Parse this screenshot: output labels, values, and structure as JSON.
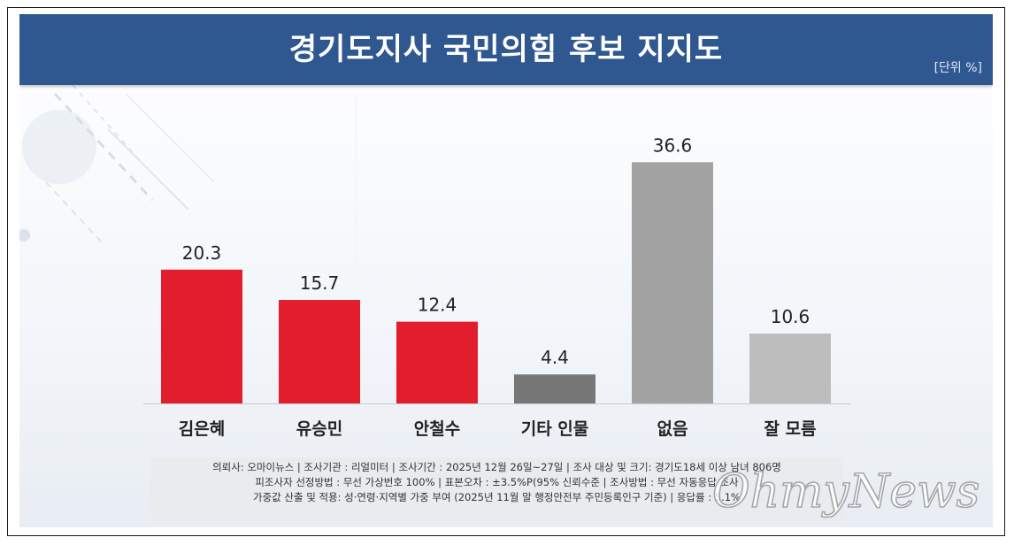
{
  "header": {
    "title": "경기도지사 국민의힘 후보 지지도",
    "unit": "[단위 %]"
  },
  "colors": {
    "header_bg": "#2f5891",
    "red": "#e31e2c",
    "dark_gray": "#777777",
    "mid_gray": "#a3a3a3",
    "light_gray": "#bdbdbd"
  },
  "chart_data": {
    "type": "bar",
    "categories": [
      "김은혜",
      "유승민",
      "안철수",
      "기타 인물",
      "없음",
      "잘 모름"
    ],
    "values": [
      20.3,
      15.7,
      12.4,
      4.4,
      36.6,
      10.6
    ],
    "value_labels": [
      "20.3",
      "15.7",
      "12.4",
      "4.4",
      "36.6",
      "10.6"
    ],
    "bar_colors": [
      "#e31e2c",
      "#e31e2c",
      "#e31e2c",
      "#777777",
      "#a3a3a3",
      "#bdbdbd"
    ],
    "title": "경기도지사 국민의힘 후보 지지도",
    "ylabel": "",
    "xlabel": "",
    "ylim": [
      0,
      40
    ],
    "grid": false
  },
  "footer": {
    "lines": [
      "의뢰사: 오마이뉴스 | 조사기관 : 리얼미터 | 조사기간 : 2025년 12월 26일~27일 | 조사 대상 및 크기: 경기도18세 이상 남녀 806명",
      "피조사자 선정방법 : 무선 가상번호 100% | 표본오차 : ±3.5%P(95% 신뢰수준 | 조사방법 : 무선 자동응답 조사",
      "가중값 산출 및 적용: 성·연령·지역별 가중 부여 (2025년 11월 말 행정안전부 주민등록인구 기준) | 응답률 : 5.1%"
    ]
  },
  "watermark": "OhmyNews"
}
